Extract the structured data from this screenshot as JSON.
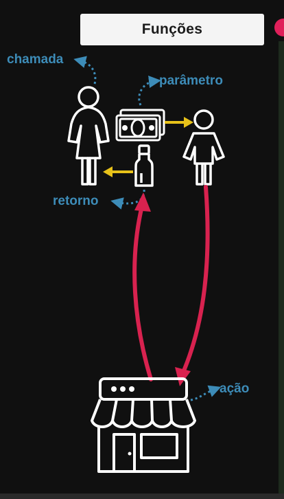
{
  "title": "Funções",
  "labels": {
    "chamada": "chamada",
    "parametro": "parâmetro",
    "retorno": "retorno",
    "acao": "ação"
  },
  "colors": {
    "background": "#101010",
    "label_blue": "#3d8cb8",
    "arrow_yellow": "#e8c21a",
    "arrow_red": "#d8224f",
    "outline_white": "#ffffff"
  }
}
